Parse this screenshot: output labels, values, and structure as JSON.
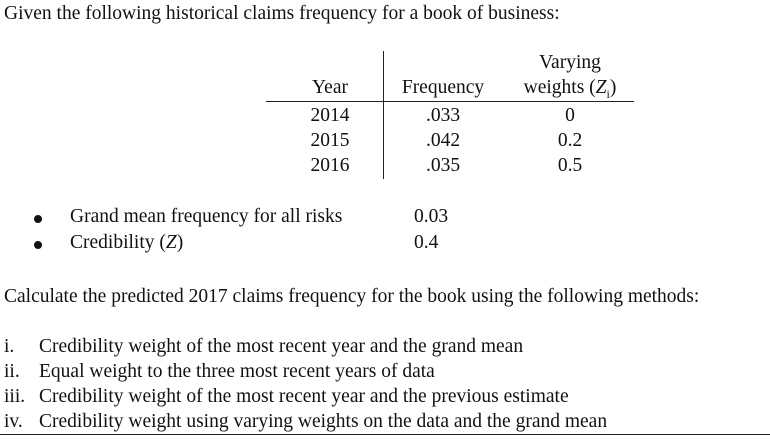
{
  "intro": "Given the following historical claims frequency for a book of business:",
  "table": {
    "headers": {
      "year": "Year",
      "frequency": "Frequency",
      "weights_line1": "Varying",
      "weights_line2_prefix": "weights (",
      "weights_line2_var": "Z",
      "weights_line2_sub": "i",
      "weights_line2_suffix": ")"
    },
    "rows": [
      {
        "year": "2014",
        "frequency": ".033",
        "weight": "0"
      },
      {
        "year": "2015",
        "frequency": ".042",
        "weight": "0.2"
      },
      {
        "year": "2016",
        "frequency": ".035",
        "weight": "0.5"
      }
    ]
  },
  "bullets": [
    {
      "label": "Grand mean frequency for all risks",
      "value": "0.03"
    },
    {
      "label_prefix": "Credibility (",
      "label_var": "Z",
      "label_suffix": ")",
      "value": "0.4"
    }
  ],
  "instruction": "Calculate the predicted 2017 claims frequency for the book using the following methods:",
  "methods": [
    {
      "numeral": "i.",
      "text": "Credibility weight of the most recent year and the grand mean"
    },
    {
      "numeral": "ii.",
      "text": "Equal weight to the three most recent years of data"
    },
    {
      "numeral": "iii.",
      "text": "Credibility weight of the most recent year and the previous estimate"
    },
    {
      "numeral": "iv.",
      "text": "Credibility weight using varying weights on the data and the grand mean"
    }
  ]
}
